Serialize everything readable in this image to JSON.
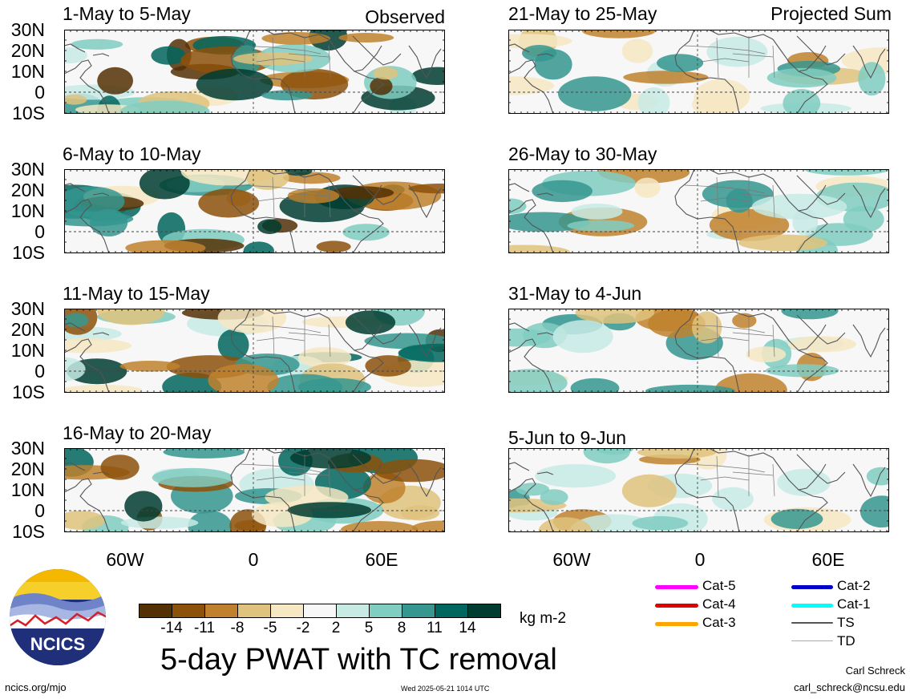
{
  "observed_label": "Observed",
  "projected_label": "Projected Sum",
  "panels_left": [
    {
      "title": "1-May to 5-May"
    },
    {
      "title": "6-May to 10-May"
    },
    {
      "title": "11-May to 15-May"
    },
    {
      "title": "16-May to 20-May"
    }
  ],
  "panels_right": [
    {
      "title": "21-May to 25-May"
    },
    {
      "title": "26-May to 30-May"
    },
    {
      "title": "31-May to 4-Jun"
    },
    {
      "title": "5-Jun to 9-Jun"
    }
  ],
  "lat_labels": [
    "30N",
    "20N",
    "10N",
    "0",
    "10S"
  ],
  "lon_labels": [
    "60W",
    "0",
    "60E"
  ],
  "colorbar": {
    "ticks": [
      "-14",
      "-11",
      "-8",
      "-5",
      "-2",
      "2",
      "5",
      "8",
      "11",
      "14"
    ],
    "colors": [
      "#543005",
      "#8c510a",
      "#bf812d",
      "#dfc27d",
      "#f6e8c3",
      "#f7f7f7",
      "#c7eae5",
      "#80cdc1",
      "#35978f",
      "#01665e",
      "#003c30"
    ],
    "units": "kg m-2"
  },
  "main_title": "5-day PWAT with TC removal",
  "legend": [
    {
      "label": "Cat-5",
      "color": "#ff00ff"
    },
    {
      "label": "Cat-4",
      "color": "#e00000"
    },
    {
      "label": "Cat-3",
      "color": "#ffa500"
    },
    {
      "label": "Cat-2",
      "color": "#0000cc"
    },
    {
      "label": "Cat-1",
      "color": "#00ffff"
    },
    {
      "label": "TS",
      "color": "#555555"
    },
    {
      "label": "TD",
      "color": "#aaaaaa"
    }
  ],
  "logo_text": "NCICS",
  "footer": {
    "left": "ncics.org/mjo",
    "center": "Wed 2025-05-21 1014 UTC",
    "author": "Carl Schreck",
    "email": "carl_schreck@ncsu.edu"
  }
}
